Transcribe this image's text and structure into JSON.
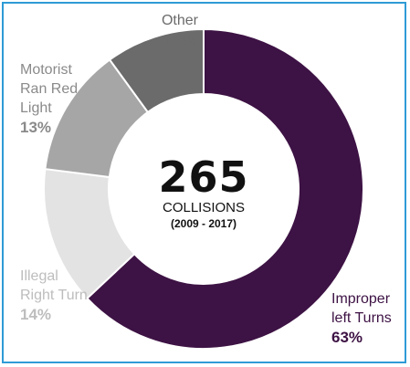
{
  "chart_data": {
    "type": "pie",
    "donut": true,
    "total": "265",
    "total_unit": "COLLISIONS",
    "period": "(2009 - 2017)",
    "slices": [
      {
        "name": "Improper\nleft Turns",
        "percent_label": "63%",
        "value": 63,
        "color": "#3d1244",
        "label_color": "#3d1244",
        "pct_color": "#3d1244"
      },
      {
        "name": "Illegal\nRight Turn",
        "percent_label": "14%",
        "value": 14,
        "color": "#e3e3e3",
        "label_color": "#bdbdbd",
        "pct_color": "#bdbdbd"
      },
      {
        "name": "Motorist\nRan Red\nLight",
        "percent_label": "13%",
        "value": 13,
        "color": "#a6a6a6",
        "label_color": "#8a8a8a",
        "pct_color": "#8a8a8a"
      },
      {
        "name": "Other",
        "percent_label": "10%",
        "value": 10,
        "color": "#6b6b6b",
        "label_color": "#6b6b6b",
        "pct_color": "#6b6b6b"
      }
    ],
    "start_angle_deg": 0,
    "direction": "clockwise"
  },
  "colors": {
    "frame_border": "#2e9bd6",
    "background": "#ffffff"
  }
}
